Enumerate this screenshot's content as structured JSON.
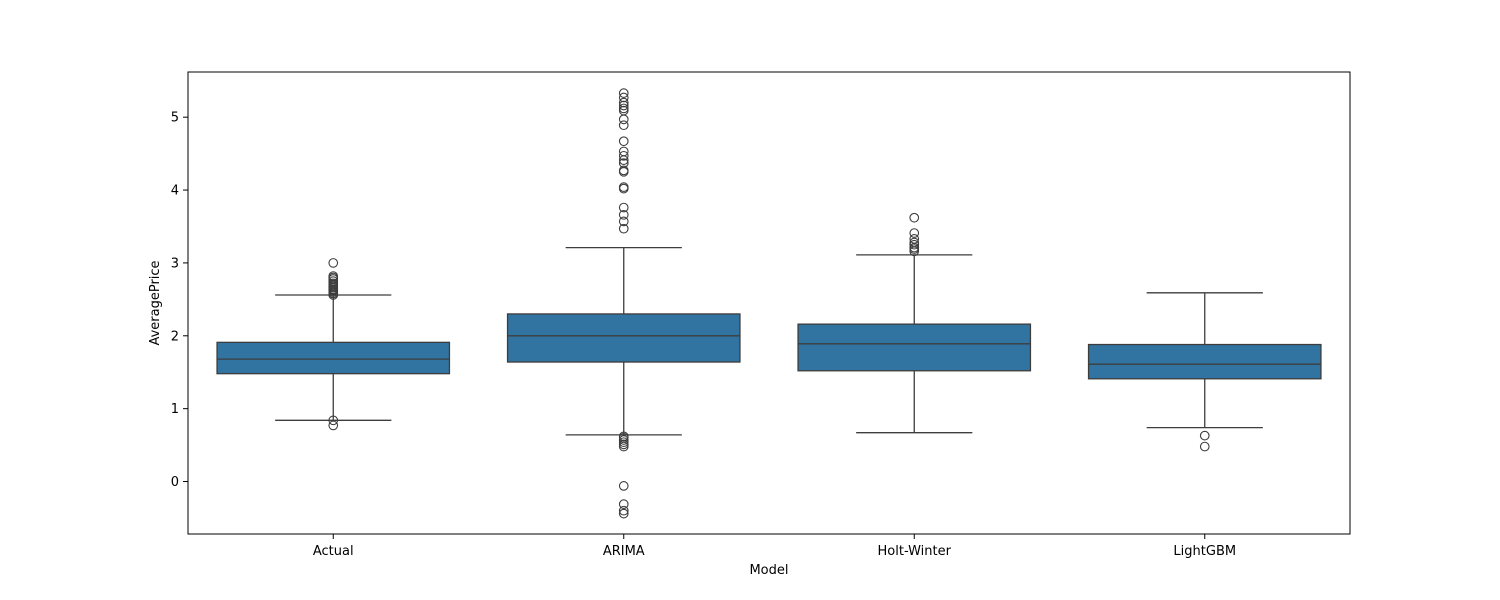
{
  "chart_data": {
    "type": "box",
    "xlabel": "Model",
    "ylabel": "AveragePrice",
    "ylim": [
      -0.72,
      5.62
    ],
    "yticks": [
      0,
      1,
      2,
      3,
      4,
      5
    ],
    "grid": false,
    "legend": "none",
    "box_color": "#3274a1",
    "line_color": "#3d3d3d",
    "categories": [
      "Actual",
      "ARIMA",
      "Holt-Winter",
      "LightGBM"
    ],
    "boxes": [
      {
        "category": "Actual",
        "whisker_low": 0.84,
        "q1": 1.48,
        "median": 1.68,
        "q3": 1.91,
        "whisker_high": 2.56,
        "outliers": [
          0.77,
          0.84,
          2.56,
          2.58,
          2.6,
          2.62,
          2.63,
          2.64,
          2.66,
          2.68,
          2.7,
          2.72,
          2.75,
          2.78,
          2.8,
          2.82,
          3.0
        ]
      },
      {
        "category": "ARIMA",
        "whisker_low": 0.64,
        "q1": 1.64,
        "median": 2.0,
        "q3": 2.3,
        "whisker_high": 3.21,
        "outliers": [
          -0.44,
          -0.4,
          -0.31,
          -0.06,
          0.48,
          0.51,
          0.54,
          0.57,
          0.6,
          0.62,
          3.47,
          3.57,
          3.66,
          3.76,
          4.02,
          4.04,
          4.25,
          4.27,
          4.37,
          4.41,
          4.47,
          4.53,
          4.67,
          4.89,
          4.97,
          5.09,
          5.12,
          5.16,
          5.2,
          5.27,
          5.33
        ]
      },
      {
        "category": "Holt-Winter",
        "whisker_low": 0.67,
        "q1": 1.52,
        "median": 1.89,
        "q3": 2.16,
        "whisker_high": 3.11,
        "outliers": [
          3.16,
          3.19,
          3.21,
          3.25,
          3.28,
          3.33,
          3.41,
          3.62
        ]
      },
      {
        "category": "LightGBM",
        "whisker_low": 0.74,
        "q1": 1.41,
        "median": 1.61,
        "q3": 1.88,
        "whisker_high": 2.59,
        "outliers": [
          0.48,
          0.63
        ]
      }
    ]
  }
}
